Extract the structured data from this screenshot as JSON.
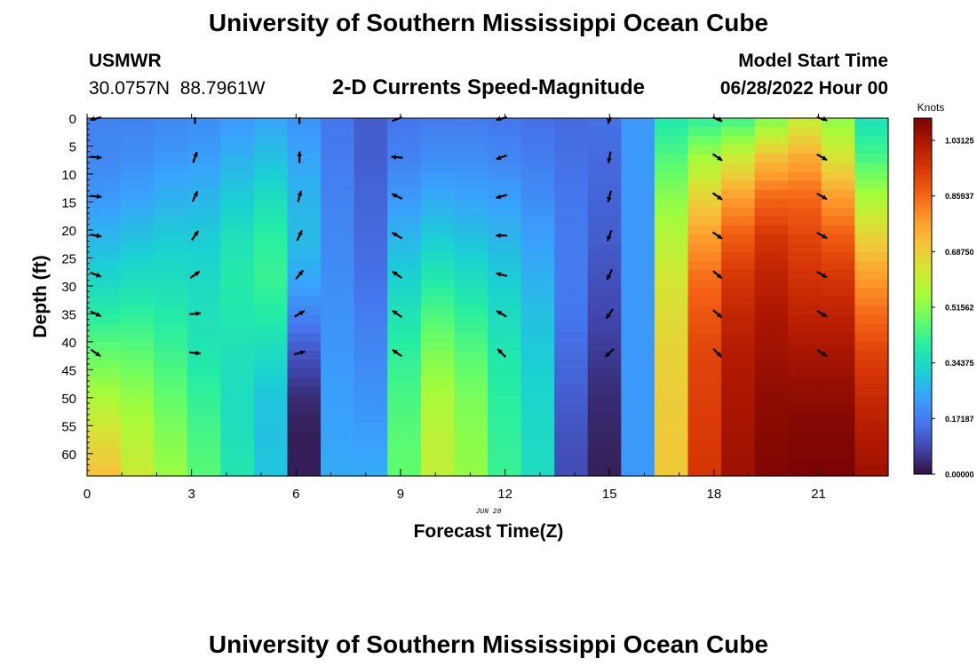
{
  "title": "University of Southern Mississippi Ocean Cube",
  "station": "USMWR",
  "coords": "30.0757N  88.7961W",
  "subtitle": "2-D Currents Speed-Magnitude",
  "model_start_label": "Model Start Time",
  "model_start_value": "06/28/2022 Hour 00",
  "date_label": "JUN 28",
  "footer_title": "University of Southern Mississippi Ocean Cube",
  "chart_data": {
    "type": "heatmap",
    "xlabel": "Forecast Time(Z)",
    "ylabel": "Depth (ft)",
    "xlim": [
      0,
      23
    ],
    "ylim": [
      0,
      64
    ],
    "y_inverted": true,
    "x_ticks": [
      0,
      3,
      6,
      9,
      12,
      15,
      18,
      21
    ],
    "y_ticks": [
      0,
      5,
      10,
      15,
      20,
      25,
      30,
      35,
      40,
      45,
      50,
      55,
      60
    ],
    "colorbar": {
      "label": "Knots",
      "min": 0.0,
      "max": 1.1,
      "tick_labels": [
        "0.00000",
        "0.17187",
        "0.34375",
        "0.51562",
        "0.68750",
        "0.85937",
        "1.03125"
      ],
      "colors": [
        "#30123b",
        "#4145ab",
        "#4675ed",
        "#39a2fc",
        "#1bcfd4",
        "#24eca6",
        "#61fc6c",
        "#a4fc3b",
        "#d1e834",
        "#f3c63a",
        "#fe9b2d",
        "#f36315",
        "#d93806",
        "#b11901",
        "#7a0403"
      ]
    },
    "speed_columns": [
      {
        "hour": 0,
        "values": [
          0.18,
          0.19,
          0.22,
          0.27,
          0.33,
          0.4,
          0.48,
          0.56,
          0.65,
          0.72
        ]
      },
      {
        "hour": 1,
        "values": [
          0.18,
          0.2,
          0.24,
          0.29,
          0.35,
          0.41,
          0.47,
          0.53,
          0.58,
          0.62
        ]
      },
      {
        "hour": 2,
        "values": [
          0.19,
          0.22,
          0.26,
          0.31,
          0.35,
          0.39,
          0.43,
          0.47,
          0.51,
          0.54
        ]
      },
      {
        "hour": 3,
        "values": [
          0.2,
          0.23,
          0.27,
          0.31,
          0.34,
          0.36,
          0.38,
          0.41,
          0.44,
          0.46
        ]
      },
      {
        "hour": 4,
        "values": [
          0.22,
          0.26,
          0.31,
          0.36,
          0.39,
          0.38,
          0.36,
          0.35,
          0.36,
          0.38
        ]
      },
      {
        "hour": 5,
        "values": [
          0.24,
          0.29,
          0.35,
          0.4,
          0.42,
          0.39,
          0.34,
          0.3,
          0.29,
          0.3
        ]
      },
      {
        "hour": 6,
        "values": [
          0.21,
          0.24,
          0.27,
          0.28,
          0.25,
          0.18,
          0.1,
          0.04,
          0.02,
          0.02
        ]
      },
      {
        "hour": 7,
        "values": [
          0.16,
          0.17,
          0.18,
          0.19,
          0.2,
          0.21,
          0.22,
          0.23,
          0.24,
          0.25
        ]
      },
      {
        "hour": 8,
        "values": [
          0.12,
          0.12,
          0.13,
          0.14,
          0.15,
          0.17,
          0.19,
          0.21,
          0.23,
          0.25
        ]
      },
      {
        "hour": 9,
        "values": [
          0.16,
          0.18,
          0.22,
          0.27,
          0.32,
          0.37,
          0.41,
          0.44,
          0.46,
          0.47
        ]
      },
      {
        "hour": 10,
        "values": [
          0.17,
          0.2,
          0.25,
          0.31,
          0.38,
          0.45,
          0.51,
          0.56,
          0.59,
          0.6
        ]
      },
      {
        "hour": 11,
        "values": [
          0.17,
          0.2,
          0.24,
          0.29,
          0.35,
          0.41,
          0.46,
          0.5,
          0.52,
          0.53
        ]
      },
      {
        "hour": 12,
        "values": [
          0.16,
          0.19,
          0.23,
          0.27,
          0.31,
          0.35,
          0.38,
          0.4,
          0.41,
          0.42
        ]
      },
      {
        "hour": 13,
        "values": [
          0.15,
          0.17,
          0.2,
          0.23,
          0.26,
          0.29,
          0.31,
          0.33,
          0.34,
          0.35
        ]
      },
      {
        "hour": 14,
        "values": [
          0.14,
          0.15,
          0.16,
          0.17,
          0.17,
          0.16,
          0.14,
          0.12,
          0.1,
          0.09
        ]
      },
      {
        "hour": 15,
        "values": [
          0.15,
          0.14,
          0.13,
          0.12,
          0.1,
          0.08,
          0.06,
          0.04,
          0.03,
          0.02
        ]
      },
      {
        "hour": 16,
        "values": [
          0.22,
          0.22,
          0.22,
          0.22,
          0.22,
          0.22,
          0.22,
          0.22,
          0.22,
          0.22
        ]
      },
      {
        "hour": 17,
        "values": [
          0.38,
          0.45,
          0.52,
          0.58,
          0.63,
          0.66,
          0.68,
          0.69,
          0.7,
          0.7
        ]
      },
      {
        "hour": 18,
        "values": [
          0.4,
          0.55,
          0.68,
          0.78,
          0.85,
          0.89,
          0.92,
          0.93,
          0.94,
          0.95
        ]
      },
      {
        "hour": 19,
        "values": [
          0.42,
          0.62,
          0.78,
          0.88,
          0.95,
          0.99,
          1.02,
          1.03,
          1.04,
          1.05
        ]
      },
      {
        "hour": 20,
        "values": [
          0.5,
          0.72,
          0.86,
          0.95,
          1.0,
          1.03,
          1.05,
          1.07,
          1.08,
          1.09
        ]
      },
      {
        "hour": 21,
        "values": [
          0.6,
          0.76,
          0.86,
          0.92,
          0.96,
          1.0,
          1.04,
          1.07,
          1.09,
          1.1
        ]
      },
      {
        "hour": 22,
        "values": [
          0.52,
          0.64,
          0.78,
          0.88,
          0.95,
          1.0,
          1.04,
          1.07,
          1.09,
          1.1
        ]
      },
      {
        "hour": 23,
        "values": [
          0.36,
          0.44,
          0.56,
          0.68,
          0.78,
          0.86,
          0.93,
          0.98,
          1.02,
          1.05
        ]
      }
    ],
    "vector_depths_ft": [
      0,
      7,
      14,
      21,
      28,
      35,
      42
    ],
    "vector_columns": [
      {
        "hour": 0.25,
        "directions_deg": [
          250,
          95,
          95,
          100,
          110,
          115,
          125
        ]
      },
      {
        "hour": 3.1,
        "directions_deg": [
          0,
          20,
          25,
          35,
          55,
          85,
          95
        ]
      },
      {
        "hour": 6.1,
        "directions_deg": [
          0,
          0,
          15,
          25,
          40,
          60,
          75
        ]
      },
      {
        "hour": 8.9,
        "directions_deg": [
          60,
          275,
          295,
          300,
          305,
          305,
          305
        ]
      },
      {
        "hour": 11.9,
        "directions_deg": [
          250,
          250,
          255,
          270,
          285,
          300,
          315
        ]
      },
      {
        "hour": 15,
        "directions_deg": [
          195,
          190,
          195,
          200,
          205,
          215,
          225
        ]
      },
      {
        "hour": 18.1,
        "directions_deg": [
          125,
          125,
          125,
          125,
          130,
          130,
          135
        ]
      },
      {
        "hour": 21.1,
        "directions_deg": [
          115,
          120,
          120,
          120,
          120,
          120,
          125
        ]
      }
    ]
  }
}
